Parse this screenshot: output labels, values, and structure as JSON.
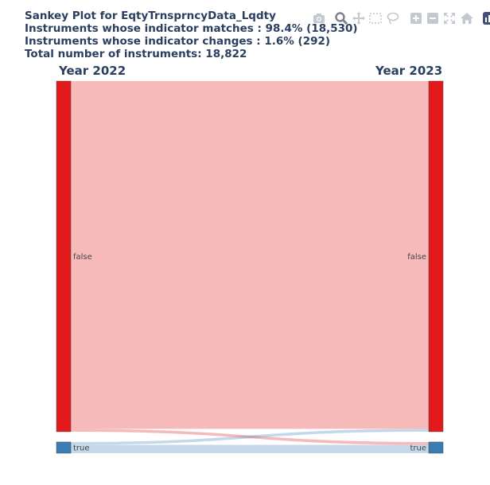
{
  "title": {
    "line1": "Sankey Plot for EqtyTrnsprncyData_Lqdty",
    "line2": "Instruments whose indicator matches : 98.4% (18,530)",
    "line3": "Instruments whose indicator changes : 1.6% (292)",
    "line4": "Total number of instruments: 18,822"
  },
  "modebar": {
    "buttons": [
      "camera-icon",
      "zoom-icon",
      "pan-icon",
      "box-select-icon",
      "lasso-icon",
      "zoom-in-icon",
      "zoom-out-icon",
      "autoscale-icon",
      "reset-axes-icon",
      "plotly-logo-icon"
    ]
  },
  "chart_data": {
    "type": "sankey",
    "columns": [
      "Year 2022",
      "Year 2023"
    ],
    "nodes": [
      {
        "label": "false",
        "column": 0,
        "value": 18241,
        "color": "#e31a1c"
      },
      {
        "label": "true",
        "column": 0,
        "value": 581,
        "color": "#3a7db5"
      },
      {
        "label": "false",
        "column": 1,
        "value": 18241,
        "color": "#e31a1c"
      },
      {
        "label": "true",
        "column": 1,
        "value": 581,
        "color": "#3a7db5"
      }
    ],
    "links": [
      {
        "source": 0,
        "target": 2,
        "value": 18095,
        "color": "rgba(227,26,28,0.3)"
      },
      {
        "source": 0,
        "target": 3,
        "value": 146,
        "color": "rgba(227,26,28,0.3)"
      },
      {
        "source": 1,
        "target": 2,
        "value": 146,
        "color": "rgba(58,125,181,0.3)"
      },
      {
        "source": 1,
        "target": 3,
        "value": 435,
        "color": "rgba(58,125,181,0.3)"
      }
    ]
  }
}
